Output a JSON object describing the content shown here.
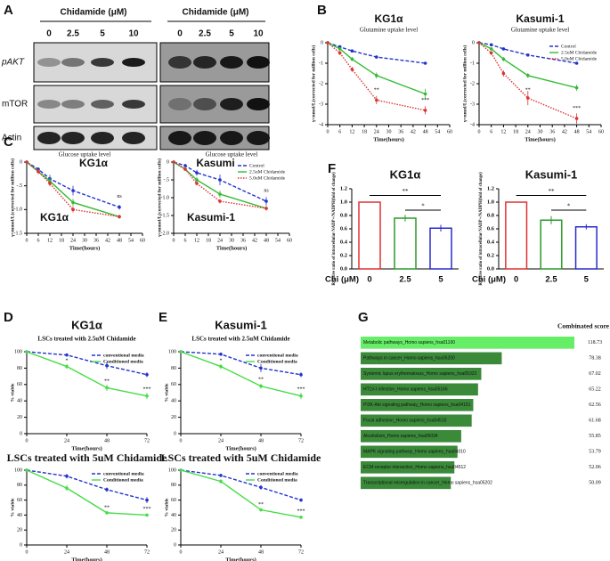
{
  "panel_labels": [
    "A",
    "B",
    "C",
    "F",
    "D",
    "E",
    "G"
  ],
  "blot": {
    "headers": [
      "Chidamide (μM)",
      "Chidamide (μM)"
    ],
    "concentrations_left": [
      "0",
      "2.5",
      "5",
      "10"
    ],
    "concentrations_right": [
      "0",
      "2.5",
      "5",
      "10"
    ],
    "rows": [
      "pAKT",
      "mTOR",
      "Actin"
    ],
    "cell_lines": [
      "KG1α",
      "Kasumi"
    ]
  },
  "chart_data": [
    {
      "type": "line",
      "title": "KG1α",
      "subtitle": "Glutamine uptake level",
      "xlabel": "Time(hours)",
      "ylabel": "γ=nmol/L(corrected for million cells)",
      "x": [
        0,
        6,
        12,
        24,
        48
      ],
      "xlim": [
        0,
        60
      ],
      "xticks": [
        0,
        6,
        12,
        18,
        24,
        30,
        36,
        42,
        48,
        54,
        60
      ],
      "ylim": [
        -4,
        0
      ],
      "yticks": [
        0,
        -1,
        -2,
        -3,
        -4
      ],
      "series": [
        {
          "name": "Control",
          "color": "#2233cc",
          "line_style": "dashed",
          "values": [
            0,
            -0.2,
            -0.4,
            -0.7,
            -1.0
          ],
          "errors": [
            0,
            0.04,
            0.05,
            0.06,
            0.06
          ]
        },
        {
          "name": "2.5uM Chidamide",
          "color": "#33bb33",
          "line_style": "solid",
          "values": [
            0,
            -0.3,
            -0.8,
            -1.6,
            -2.5
          ],
          "errors": [
            0,
            0.08,
            0.1,
            0.15,
            0.25
          ]
        },
        {
          "name": "5.0uM Chidamide",
          "color": "#dd3333",
          "line_style": "dotted",
          "values": [
            0,
            -0.5,
            -1.3,
            -2.8,
            -3.3
          ],
          "errors": [
            0,
            0.1,
            0.12,
            0.2,
            0.2
          ]
        }
      ],
      "annotations": [
        "**",
        "***"
      ]
    },
    {
      "type": "line",
      "title": "Kasumi-1",
      "subtitle": "Glutamine uptake level",
      "xlabel": "Time(hours)",
      "ylabel": "γ=nmol/L(corrected for million cells)",
      "x": [
        0,
        6,
        12,
        24,
        48
      ],
      "xlim": [
        0,
        60
      ],
      "xticks": [
        0,
        6,
        12,
        18,
        24,
        30,
        36,
        42,
        48,
        54,
        60
      ],
      "ylim": [
        -4,
        0
      ],
      "yticks": [
        0,
        -1,
        -2,
        -3,
        -4
      ],
      "legend": "upper right",
      "series": [
        {
          "name": "Control",
          "color": "#2233cc",
          "line_style": "dashed",
          "values": [
            0,
            -0.1,
            -0.3,
            -0.6,
            -1.0
          ],
          "errors": [
            0,
            0.03,
            0.04,
            0.05,
            0.06
          ]
        },
        {
          "name": "2.5uM Chidamide",
          "color": "#33bb33",
          "line_style": "solid",
          "values": [
            0,
            -0.3,
            -0.8,
            -1.6,
            -2.2
          ],
          "errors": [
            0,
            0.08,
            0.1,
            0.12,
            0.15
          ]
        },
        {
          "name": "5.0uM Chidamide",
          "color": "#dd3333",
          "line_style": "dotted",
          "values": [
            0,
            -0.5,
            -1.5,
            -2.7,
            -3.7
          ],
          "errors": [
            0,
            0.1,
            0.15,
            0.35,
            0.25
          ]
        }
      ],
      "annotations": [
        "**",
        "***"
      ]
    },
    {
      "type": "line",
      "subtitle": "Glucose uptake level",
      "label": "KG1α",
      "xlabel": "Time(hours)",
      "ylabel": "γ=mmol/L(corrected for million cells)",
      "x": [
        0,
        6,
        12,
        24,
        48
      ],
      "xlim": [
        0,
        60
      ],
      "xticks": [
        0,
        6,
        12,
        18,
        24,
        30,
        36,
        42,
        48,
        54,
        60
      ],
      "ylim": [
        -1.5,
        0
      ],
      "yticks": [
        0,
        {
          "value": -0.5,
          "label": "-.5"
        },
        {
          "value": -1,
          "label": "-1.0"
        },
        -1.5
      ],
      "series": [
        {
          "name": "Control",
          "color": "#2233cc",
          "line_style": "dashed",
          "values": [
            0,
            -0.15,
            -0.35,
            -0.6,
            -0.95
          ],
          "errors": [
            0,
            0.04,
            0.08,
            0.1,
            0.05
          ]
        },
        {
          "name": "2.5uM Chidamide",
          "color": "#33bb33",
          "line_style": "solid",
          "values": [
            0,
            -0.2,
            -0.4,
            -0.85,
            -1.15
          ],
          "errors": [
            0,
            0.05,
            0.08,
            0.08,
            0.04
          ]
        },
        {
          "name": "5.0uM Chidamide",
          "color": "#dd3333",
          "line_style": "dotted",
          "values": [
            0,
            -0.2,
            -0.45,
            -1.0,
            -1.15
          ],
          "errors": [
            0,
            0.05,
            0.06,
            0.06,
            0.04
          ]
        }
      ],
      "annotations": [
        "ns"
      ]
    },
    {
      "type": "line",
      "subtitle": "Glucose uptake level",
      "label": "Kasumi-1",
      "xlabel": "Time(hours)",
      "ylabel": "γ=mmol/L(corrected for million cells)",
      "x": [
        0,
        6,
        12,
        24,
        48
      ],
      "xlim": [
        0,
        60
      ],
      "xticks": [
        0,
        6,
        12,
        18,
        24,
        30,
        36,
        42,
        48,
        54,
        60
      ],
      "ylim": [
        -2,
        0
      ],
      "yticks": [
        0,
        {
          "value": -0.5,
          "label": "-.5"
        },
        {
          "value": -1,
          "label": "-1.0"
        },
        -1.5,
        {
          "value": -2,
          "label": "-2.0"
        }
      ],
      "legend": "upper right",
      "series": [
        {
          "name": "Control",
          "color": "#2233cc",
          "line_style": "dashed",
          "values": [
            0,
            -0.1,
            -0.3,
            -0.5,
            -1.1
          ],
          "errors": [
            0,
            0.05,
            0.08,
            0.15,
            0.12
          ]
        },
        {
          "name": "2.5uM Chidamide",
          "color": "#33bb33",
          "line_style": "solid",
          "values": [
            0,
            -0.2,
            -0.5,
            -0.9,
            -1.3
          ],
          "errors": [
            0,
            0.05,
            0.08,
            0.1,
            0.06
          ]
        },
        {
          "name": "5.0uM Chidamide",
          "color": "#dd3333",
          "line_style": "dotted",
          "values": [
            0,
            -0.2,
            -0.6,
            -1.1,
            -1.3
          ],
          "errors": [
            0,
            0.05,
            0.06,
            0.06,
            0.06
          ]
        }
      ],
      "annotations": [
        "ns"
      ]
    },
    {
      "type": "bar",
      "title": "KG1α",
      "xlabel": "Chi (μM)",
      "ylabel": "Relative ratio of intracellular NADP+/NADPH(fold of change)",
      "categories": [
        "0",
        "2.5",
        "5"
      ],
      "values": [
        1,
        0.76,
        0.61
      ],
      "errors": [
        0,
        0.05,
        0.05
      ],
      "colors": [
        "#e03030",
        "#2a9a2a",
        "#2a2ad0"
      ],
      "ylim": [
        0,
        1.2
      ],
      "yticks": [
        {
          "value": 0,
          "label": "0.0"
        },
        0.2,
        0.4,
        0.6,
        0.8,
        {
          "value": 1,
          "label": "1.0"
        },
        1.2
      ],
      "annotations": [
        "**",
        "*"
      ]
    },
    {
      "type": "bar",
      "title": "Kasumi-1",
      "xlabel": "Chi (μM)",
      "ylabel": "Relative ratio of intracellular NADP+/NADPH(fold of change)",
      "categories": [
        "0",
        "2.5",
        "5"
      ],
      "values": [
        1,
        0.73,
        0.63
      ],
      "errors": [
        0,
        0.06,
        0.04
      ],
      "colors": [
        "#e03030",
        "#2a9a2a",
        "#2a2ad0"
      ],
      "ylim": [
        0,
        1.2
      ],
      "yticks": [
        {
          "value": 0,
          "label": "0.0"
        },
        0.2,
        0.4,
        0.6,
        0.8,
        {
          "value": 1,
          "label": "1.0"
        },
        1.2
      ],
      "annotations": [
        "**",
        "*"
      ]
    },
    {
      "type": "line",
      "heading": "KG1α",
      "title": "LSCs treated with 2.5uM Chidamide",
      "xlabel": "Time(hours)",
      "ylabel": "% viable",
      "x": [
        0,
        24,
        48,
        72
      ],
      "xlim": [
        0,
        72
      ],
      "xticks": [
        0,
        24,
        48,
        72
      ],
      "ylim": [
        0,
        100
      ],
      "yticks": [
        0,
        20,
        40,
        60,
        80,
        100
      ],
      "legend": "upper right",
      "series": [
        {
          "name": "conventional media",
          "color": "#2233cc",
          "line_style": "dashed",
          "values": [
            100,
            96,
            83,
            72
          ],
          "errors": [
            0,
            2,
            4,
            3
          ]
        },
        {
          "name": "Conditioned media",
          "color": "#44dd44",
          "line_style": "solid",
          "values": [
            100,
            82,
            56,
            46
          ],
          "errors": [
            0,
            3,
            4,
            4
          ]
        }
      ],
      "annotations": [
        "*",
        "**",
        "***"
      ]
    },
    {
      "type": "line",
      "title": "LSCs treated with 5uM Chidamide",
      "xlabel": "Time(hours)",
      "ylabel": "% viable",
      "x": [
        0,
        24,
        48,
        72
      ],
      "xlim": [
        0,
        72
      ],
      "xticks": [
        0,
        24,
        48,
        72
      ],
      "ylim": [
        0,
        100
      ],
      "yticks": [
        0,
        20,
        40,
        60,
        80,
        100
      ],
      "legend": "upper right",
      "series": [
        {
          "name": "conventional media",
          "color": "#2233cc",
          "line_style": "dashed",
          "values": [
            100,
            92,
            74,
            60
          ],
          "errors": [
            0,
            3,
            3,
            4
          ]
        },
        {
          "name": "Conditioned media",
          "color": "#44dd44",
          "line_style": "solid",
          "values": [
            100,
            76,
            43,
            40
          ],
          "errors": [
            0,
            4,
            2,
            2
          ]
        }
      ],
      "annotations": [
        "**",
        "***"
      ]
    },
    {
      "type": "line",
      "heading": "Kasumi-1",
      "title": "LSCs treated with 2.5uM Chidamide",
      "xlabel": "Time(hours)",
      "ylabel": "% viable",
      "x": [
        0,
        24,
        48,
        72
      ],
      "xlim": [
        0,
        72
      ],
      "xticks": [
        0,
        24,
        48,
        72
      ],
      "ylim": [
        0,
        100
      ],
      "yticks": [
        0,
        20,
        40,
        60,
        80,
        100
      ],
      "legend": "upper right",
      "series": [
        {
          "name": "conventional media",
          "color": "#2233cc",
          "line_style": "dashed",
          "values": [
            100,
            97,
            80,
            72
          ],
          "errors": [
            0,
            2,
            5,
            3
          ]
        },
        {
          "name": "Conditioned media",
          "color": "#44dd44",
          "line_style": "solid",
          "values": [
            100,
            82,
            58,
            46
          ],
          "errors": [
            0,
            3,
            3,
            4
          ]
        }
      ],
      "annotations": [
        "*",
        "**",
        "***"
      ]
    },
    {
      "type": "line",
      "title": "LSCs treated with 5uM Chidamide",
      "xlabel": "Time(hours)",
      "ylabel": "% viable",
      "x": [
        0,
        24,
        48,
        72
      ],
      "xlim": [
        0,
        72
      ],
      "xticks": [
        0,
        24,
        48,
        72
      ],
      "ylim": [
        0,
        100
      ],
      "yticks": [
        0,
        20,
        40,
        60,
        80,
        100
      ],
      "legend": "upper right",
      "series": [
        {
          "name": "conventional media",
          "color": "#2233cc",
          "line_style": "dashed",
          "values": [
            100,
            93,
            77,
            60
          ],
          "errors": [
            0,
            2,
            3,
            2
          ]
        },
        {
          "name": "Conditioned media",
          "color": "#44dd44",
          "line_style": "solid",
          "values": [
            100,
            85,
            47,
            37
          ],
          "errors": [
            0,
            3,
            2,
            2
          ]
        }
      ],
      "annotations": [
        "**",
        "***"
      ]
    },
    {
      "type": "hbar",
      "title": "Combinated score",
      "categories": [
        "Metabolic pathways_Homo sapiens_hsa01100",
        "Pathways in cancer_Homo sapiens_hsa05200",
        "Systemic lupus erythematosus_Homo sapiens_hsa05322",
        "HTLV-I infection_Homo sapiens_hsa05166",
        "PI3K-Akt signaling pathway_Homo sapiens_hsa04151",
        "Focal adhesion_Homo sapiens_hsa04510",
        "Alcoholism_Homo sapiens_hsa05034",
        "MAPK signaling pathway_Homo sapiens_hsa04010",
        "ECM-receptor interaction_Homo sapiens_hsa04512",
        "Transcriptional misregulation in cancer_Homo sapiens_hsa05202"
      ],
      "values": [
        118.73,
        78.38,
        67.02,
        65.22,
        62.56,
        61.68,
        55.85,
        53.79,
        52.06,
        50.09
      ],
      "colors": [
        "#66ee66",
        "#3a8a3a",
        "#3a8a3a",
        "#3a8a3a",
        "#3a8a3a",
        "#3a8a3a",
        "#3a8a3a",
        "#3a8a3a",
        "#3a8a3a",
        "#3a8a3a"
      ]
    }
  ]
}
